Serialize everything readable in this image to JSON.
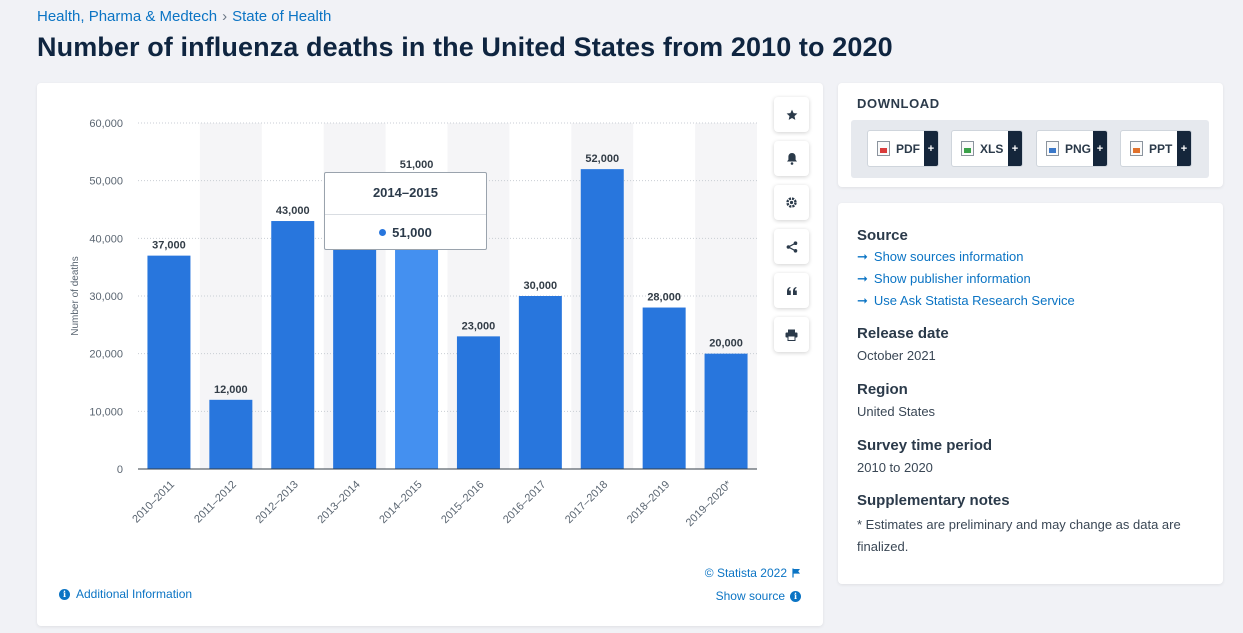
{
  "breadcrumb": {
    "items": [
      "Health, Pharma & Medtech",
      "State of Health"
    ],
    "separator": "›"
  },
  "title": "Number of influenza deaths in the United States from 2010 to 2020",
  "chart_data": {
    "type": "bar",
    "title": "",
    "ylabel": "Number of deaths",
    "xlabel": "",
    "categories": [
      "2010–2011",
      "2011–2012",
      "2012–2013",
      "2013–2014",
      "2014–2015",
      "2015–2016",
      "2016–2017",
      "2017–2018",
      "2018–2019",
      "2019–2020*"
    ],
    "values": [
      37000,
      12000,
      43000,
      38000,
      51000,
      23000,
      30000,
      52000,
      28000,
      20000
    ],
    "data_labels": [
      "37,000",
      "12,000",
      "43,000",
      "",
      "51,000",
      "23,000",
      "30,000",
      "52,000",
      "28,000",
      "20,000"
    ],
    "ylim": [
      0,
      60000
    ],
    "yticks": [
      0,
      10000,
      20000,
      30000,
      40000,
      50000,
      60000
    ],
    "ytick_labels": [
      "0",
      "10,000",
      "20,000",
      "30,000",
      "40,000",
      "50,000",
      "60,000"
    ],
    "grid": true,
    "bar_color": "#2876dd",
    "highlight_color": "#4490f0",
    "highlight_index": 4
  },
  "tooltip": {
    "title": "2014–2015",
    "value": "51,000"
  },
  "chart_footer": {
    "credit": "© Statista 2022",
    "show_source": "Show source",
    "additional_info": "Additional Information"
  },
  "toolbar": {
    "icons": [
      "star-icon",
      "bell-icon",
      "gear-icon",
      "share-icon",
      "quote-icon",
      "print-icon"
    ]
  },
  "download": {
    "heading": "DOWNLOAD",
    "buttons": [
      {
        "label": "PDF",
        "plus": "+"
      },
      {
        "label": "XLS",
        "plus": "+"
      },
      {
        "label": "PNG",
        "plus": "+"
      },
      {
        "label": "PPT",
        "plus": "+"
      }
    ]
  },
  "info": {
    "source_heading": "Source",
    "links": [
      "Show sources information",
      "Show publisher information",
      "Use Ask Statista Research Service"
    ],
    "release_heading": "Release date",
    "release_value": "October 2021",
    "region_heading": "Region",
    "region_value": "United States",
    "survey_heading": "Survey time period",
    "survey_value": "2010 to 2020",
    "notes_heading": "Supplementary notes",
    "notes_value": "* Estimates are preliminary and may change as data are finalized."
  }
}
